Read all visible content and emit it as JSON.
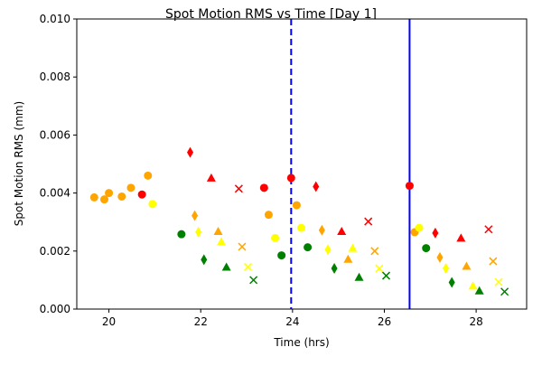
{
  "chart_data": {
    "type": "scatter",
    "title": "Spot Motion RMS vs Time [Day 1]",
    "xlabel": "Time (hrs)",
    "ylabel": "Spot Motion RMS (mm)",
    "xlim": [
      19.3,
      29.1
    ],
    "ylim": [
      0.0,
      0.01
    ],
    "xticks": [
      20,
      22,
      24,
      26,
      28
    ],
    "yticks": [
      0.0,
      0.002,
      0.004,
      0.006,
      0.008,
      0.01
    ],
    "xtick_labels": [
      "20",
      "22",
      "24",
      "26",
      "28"
    ],
    "ytick_labels": [
      "0.000",
      "0.002",
      "0.004",
      "0.006",
      "0.008",
      "0.010"
    ],
    "grid": false,
    "vlines": [
      {
        "x": 23.97,
        "style": "dashed",
        "color": "#0000ff"
      },
      {
        "x": 26.55,
        "style": "solid",
        "color": "#0000ff"
      }
    ],
    "colors": {
      "orange": "#ffa500",
      "red": "#ff0000",
      "yellow": "#ffff00",
      "green": "#008000"
    },
    "points": [
      {
        "x": 19.68,
        "y": 0.00385,
        "color": "orange",
        "marker": "circle"
      },
      {
        "x": 19.9,
        "y": 0.00378,
        "color": "orange",
        "marker": "circle"
      },
      {
        "x": 20.0,
        "y": 0.004,
        "color": "orange",
        "marker": "circle"
      },
      {
        "x": 20.28,
        "y": 0.00388,
        "color": "orange",
        "marker": "circle"
      },
      {
        "x": 20.48,
        "y": 0.00418,
        "color": "orange",
        "marker": "circle"
      },
      {
        "x": 20.72,
        "y": 0.00395,
        "color": "red",
        "marker": "circle"
      },
      {
        "x": 20.85,
        "y": 0.0046,
        "color": "orange",
        "marker": "circle"
      },
      {
        "x": 20.95,
        "y": 0.00362,
        "color": "yellow",
        "marker": "circle"
      },
      {
        "x": 21.58,
        "y": 0.00258,
        "color": "green",
        "marker": "circle"
      },
      {
        "x": 21.77,
        "y": 0.0054,
        "color": "red",
        "marker": "diamond"
      },
      {
        "x": 21.87,
        "y": 0.00322,
        "color": "orange",
        "marker": "diamond"
      },
      {
        "x": 21.95,
        "y": 0.00265,
        "color": "yellow",
        "marker": "diamond"
      },
      {
        "x": 22.07,
        "y": 0.0017,
        "color": "green",
        "marker": "diamond"
      },
      {
        "x": 22.23,
        "y": 0.00452,
        "color": "red",
        "marker": "triangle"
      },
      {
        "x": 22.38,
        "y": 0.00268,
        "color": "orange",
        "marker": "triangle"
      },
      {
        "x": 22.45,
        "y": 0.00232,
        "color": "yellow",
        "marker": "triangle"
      },
      {
        "x": 22.56,
        "y": 0.00145,
        "color": "green",
        "marker": "triangle"
      },
      {
        "x": 22.83,
        "y": 0.00415,
        "color": "red",
        "marker": "x"
      },
      {
        "x": 22.9,
        "y": 0.00215,
        "color": "orange",
        "marker": "x"
      },
      {
        "x": 23.03,
        "y": 0.00145,
        "color": "yellow",
        "marker": "x"
      },
      {
        "x": 23.15,
        "y": 0.001,
        "color": "green",
        "marker": "x"
      },
      {
        "x": 23.38,
        "y": 0.00418,
        "color": "red",
        "marker": "circle"
      },
      {
        "x": 23.48,
        "y": 0.00325,
        "color": "orange",
        "marker": "circle"
      },
      {
        "x": 23.62,
        "y": 0.00245,
        "color": "yellow",
        "marker": "circle"
      },
      {
        "x": 23.76,
        "y": 0.00185,
        "color": "green",
        "marker": "circle"
      },
      {
        "x": 23.97,
        "y": 0.00452,
        "color": "red",
        "marker": "circle"
      },
      {
        "x": 24.09,
        "y": 0.00358,
        "color": "orange",
        "marker": "circle"
      },
      {
        "x": 24.19,
        "y": 0.0028,
        "color": "yellow",
        "marker": "circle"
      },
      {
        "x": 24.33,
        "y": 0.00213,
        "color": "green",
        "marker": "circle"
      },
      {
        "x": 24.51,
        "y": 0.00422,
        "color": "red",
        "marker": "diamond"
      },
      {
        "x": 24.64,
        "y": 0.00272,
        "color": "orange",
        "marker": "diamond"
      },
      {
        "x": 24.77,
        "y": 0.00205,
        "color": "yellow",
        "marker": "diamond"
      },
      {
        "x": 24.91,
        "y": 0.0014,
        "color": "green",
        "marker": "diamond"
      },
      {
        "x": 25.07,
        "y": 0.00268,
        "color": "red",
        "marker": "triangle"
      },
      {
        "x": 25.21,
        "y": 0.00172,
        "color": "orange",
        "marker": "triangle"
      },
      {
        "x": 25.31,
        "y": 0.0021,
        "color": "yellow",
        "marker": "triangle"
      },
      {
        "x": 25.45,
        "y": 0.0011,
        "color": "green",
        "marker": "triangle"
      },
      {
        "x": 25.65,
        "y": 0.00302,
        "color": "red",
        "marker": "x"
      },
      {
        "x": 25.79,
        "y": 0.002,
        "color": "orange",
        "marker": "x"
      },
      {
        "x": 25.89,
        "y": 0.0014,
        "color": "yellow",
        "marker": "x"
      },
      {
        "x": 26.04,
        "y": 0.00115,
        "color": "green",
        "marker": "x"
      },
      {
        "x": 26.55,
        "y": 0.00425,
        "color": "red",
        "marker": "circle"
      },
      {
        "x": 26.66,
        "y": 0.00265,
        "color": "orange",
        "marker": "circle"
      },
      {
        "x": 26.76,
        "y": 0.0028,
        "color": "yellow",
        "marker": "circle"
      },
      {
        "x": 26.91,
        "y": 0.0021,
        "color": "green",
        "marker": "circle"
      },
      {
        "x": 27.11,
        "y": 0.00262,
        "color": "red",
        "marker": "diamond"
      },
      {
        "x": 27.21,
        "y": 0.00178,
        "color": "orange",
        "marker": "diamond"
      },
      {
        "x": 27.34,
        "y": 0.0014,
        "color": "yellow",
        "marker": "diamond"
      },
      {
        "x": 27.47,
        "y": 0.00092,
        "color": "green",
        "marker": "diamond"
      },
      {
        "x": 27.67,
        "y": 0.00245,
        "color": "red",
        "marker": "triangle"
      },
      {
        "x": 27.79,
        "y": 0.00148,
        "color": "orange",
        "marker": "triangle"
      },
      {
        "x": 27.93,
        "y": 0.0008,
        "color": "yellow",
        "marker": "triangle"
      },
      {
        "x": 28.07,
        "y": 0.00063,
        "color": "green",
        "marker": "triangle"
      },
      {
        "x": 28.27,
        "y": 0.00275,
        "color": "red",
        "marker": "x"
      },
      {
        "x": 28.37,
        "y": 0.00165,
        "color": "orange",
        "marker": "x"
      },
      {
        "x": 28.49,
        "y": 0.00093,
        "color": "yellow",
        "marker": "x"
      },
      {
        "x": 28.62,
        "y": 0.0006,
        "color": "green",
        "marker": "x"
      }
    ]
  }
}
